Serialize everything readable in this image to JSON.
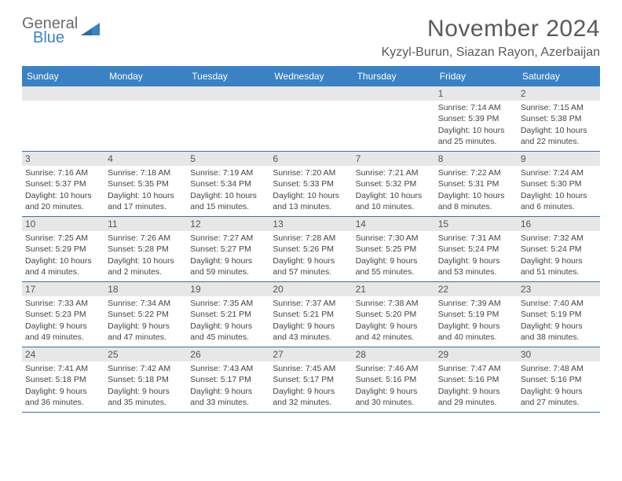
{
  "logo": {
    "text_general": "General",
    "text_blue": "Blue",
    "icon_color": "#3a82c4"
  },
  "header": {
    "month_title": "November 2024",
    "location": "Kyzyl-Burun, Siazan Rayon, Azerbaijan"
  },
  "colors": {
    "header_bar": "#3a82c4",
    "header_text": "#ffffff",
    "daynum_bg": "#e7e7e7",
    "border": "#3a6fa8",
    "body_text": "#444444"
  },
  "weekdays": [
    "Sunday",
    "Monday",
    "Tuesday",
    "Wednesday",
    "Thursday",
    "Friday",
    "Saturday"
  ],
  "weeks": [
    [
      null,
      null,
      null,
      null,
      null,
      {
        "n": "1",
        "sr": "Sunrise: 7:14 AM",
        "ss": "Sunset: 5:39 PM",
        "d1": "Daylight: 10 hours",
        "d2": "and 25 minutes."
      },
      {
        "n": "2",
        "sr": "Sunrise: 7:15 AM",
        "ss": "Sunset: 5:38 PM",
        "d1": "Daylight: 10 hours",
        "d2": "and 22 minutes."
      }
    ],
    [
      {
        "n": "3",
        "sr": "Sunrise: 7:16 AM",
        "ss": "Sunset: 5:37 PM",
        "d1": "Daylight: 10 hours",
        "d2": "and 20 minutes."
      },
      {
        "n": "4",
        "sr": "Sunrise: 7:18 AM",
        "ss": "Sunset: 5:35 PM",
        "d1": "Daylight: 10 hours",
        "d2": "and 17 minutes."
      },
      {
        "n": "5",
        "sr": "Sunrise: 7:19 AM",
        "ss": "Sunset: 5:34 PM",
        "d1": "Daylight: 10 hours",
        "d2": "and 15 minutes."
      },
      {
        "n": "6",
        "sr": "Sunrise: 7:20 AM",
        "ss": "Sunset: 5:33 PM",
        "d1": "Daylight: 10 hours",
        "d2": "and 13 minutes."
      },
      {
        "n": "7",
        "sr": "Sunrise: 7:21 AM",
        "ss": "Sunset: 5:32 PM",
        "d1": "Daylight: 10 hours",
        "d2": "and 10 minutes."
      },
      {
        "n": "8",
        "sr": "Sunrise: 7:22 AM",
        "ss": "Sunset: 5:31 PM",
        "d1": "Daylight: 10 hours",
        "d2": "and 8 minutes."
      },
      {
        "n": "9",
        "sr": "Sunrise: 7:24 AM",
        "ss": "Sunset: 5:30 PM",
        "d1": "Daylight: 10 hours",
        "d2": "and 6 minutes."
      }
    ],
    [
      {
        "n": "10",
        "sr": "Sunrise: 7:25 AM",
        "ss": "Sunset: 5:29 PM",
        "d1": "Daylight: 10 hours",
        "d2": "and 4 minutes."
      },
      {
        "n": "11",
        "sr": "Sunrise: 7:26 AM",
        "ss": "Sunset: 5:28 PM",
        "d1": "Daylight: 10 hours",
        "d2": "and 2 minutes."
      },
      {
        "n": "12",
        "sr": "Sunrise: 7:27 AM",
        "ss": "Sunset: 5:27 PM",
        "d1": "Daylight: 9 hours",
        "d2": "and 59 minutes."
      },
      {
        "n": "13",
        "sr": "Sunrise: 7:28 AM",
        "ss": "Sunset: 5:26 PM",
        "d1": "Daylight: 9 hours",
        "d2": "and 57 minutes."
      },
      {
        "n": "14",
        "sr": "Sunrise: 7:30 AM",
        "ss": "Sunset: 5:25 PM",
        "d1": "Daylight: 9 hours",
        "d2": "and 55 minutes."
      },
      {
        "n": "15",
        "sr": "Sunrise: 7:31 AM",
        "ss": "Sunset: 5:24 PM",
        "d1": "Daylight: 9 hours",
        "d2": "and 53 minutes."
      },
      {
        "n": "16",
        "sr": "Sunrise: 7:32 AM",
        "ss": "Sunset: 5:24 PM",
        "d1": "Daylight: 9 hours",
        "d2": "and 51 minutes."
      }
    ],
    [
      {
        "n": "17",
        "sr": "Sunrise: 7:33 AM",
        "ss": "Sunset: 5:23 PM",
        "d1": "Daylight: 9 hours",
        "d2": "and 49 minutes."
      },
      {
        "n": "18",
        "sr": "Sunrise: 7:34 AM",
        "ss": "Sunset: 5:22 PM",
        "d1": "Daylight: 9 hours",
        "d2": "and 47 minutes."
      },
      {
        "n": "19",
        "sr": "Sunrise: 7:35 AM",
        "ss": "Sunset: 5:21 PM",
        "d1": "Daylight: 9 hours",
        "d2": "and 45 minutes."
      },
      {
        "n": "20",
        "sr": "Sunrise: 7:37 AM",
        "ss": "Sunset: 5:21 PM",
        "d1": "Daylight: 9 hours",
        "d2": "and 43 minutes."
      },
      {
        "n": "21",
        "sr": "Sunrise: 7:38 AM",
        "ss": "Sunset: 5:20 PM",
        "d1": "Daylight: 9 hours",
        "d2": "and 42 minutes."
      },
      {
        "n": "22",
        "sr": "Sunrise: 7:39 AM",
        "ss": "Sunset: 5:19 PM",
        "d1": "Daylight: 9 hours",
        "d2": "and 40 minutes."
      },
      {
        "n": "23",
        "sr": "Sunrise: 7:40 AM",
        "ss": "Sunset: 5:19 PM",
        "d1": "Daylight: 9 hours",
        "d2": "and 38 minutes."
      }
    ],
    [
      {
        "n": "24",
        "sr": "Sunrise: 7:41 AM",
        "ss": "Sunset: 5:18 PM",
        "d1": "Daylight: 9 hours",
        "d2": "and 36 minutes."
      },
      {
        "n": "25",
        "sr": "Sunrise: 7:42 AM",
        "ss": "Sunset: 5:18 PM",
        "d1": "Daylight: 9 hours",
        "d2": "and 35 minutes."
      },
      {
        "n": "26",
        "sr": "Sunrise: 7:43 AM",
        "ss": "Sunset: 5:17 PM",
        "d1": "Daylight: 9 hours",
        "d2": "and 33 minutes."
      },
      {
        "n": "27",
        "sr": "Sunrise: 7:45 AM",
        "ss": "Sunset: 5:17 PM",
        "d1": "Daylight: 9 hours",
        "d2": "and 32 minutes."
      },
      {
        "n": "28",
        "sr": "Sunrise: 7:46 AM",
        "ss": "Sunset: 5:16 PM",
        "d1": "Daylight: 9 hours",
        "d2": "and 30 minutes."
      },
      {
        "n": "29",
        "sr": "Sunrise: 7:47 AM",
        "ss": "Sunset: 5:16 PM",
        "d1": "Daylight: 9 hours",
        "d2": "and 29 minutes."
      },
      {
        "n": "30",
        "sr": "Sunrise: 7:48 AM",
        "ss": "Sunset: 5:16 PM",
        "d1": "Daylight: 9 hours",
        "d2": "and 27 minutes."
      }
    ]
  ]
}
